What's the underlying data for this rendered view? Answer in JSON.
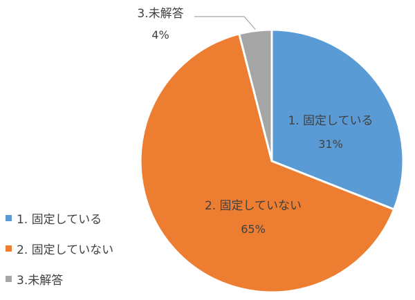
{
  "chart_data": {
    "type": "pie",
    "title": "",
    "categories": [
      "1. 固定している",
      "2. 固定していない",
      "3.未解答"
    ],
    "values": [
      31,
      65,
      4
    ],
    "value_labels": [
      "31%",
      "65%",
      "4%"
    ],
    "colors": [
      "#5B9BD5",
      "#ED7D31",
      "#A5A5A5"
    ],
    "start_angle_deg": 0,
    "direction": "clockwise",
    "legend": {
      "position": "left-bottom",
      "items": [
        "1. 固定している",
        "2. 固定していない",
        "3.未解答"
      ]
    }
  }
}
